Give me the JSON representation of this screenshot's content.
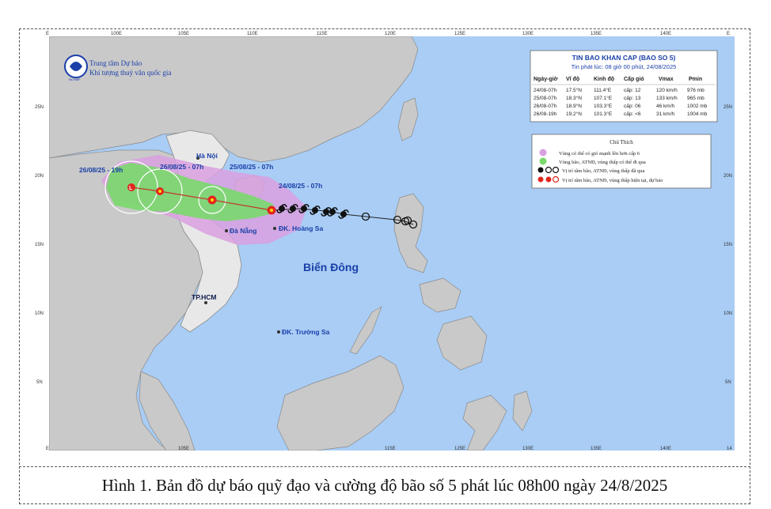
{
  "map": {
    "lon_ticks": [
      "E",
      "100E",
      "105E",
      "110E",
      "115E",
      "120E",
      "125E",
      "130E",
      "135E",
      "140E",
      "E"
    ],
    "lat_ticks_left": [
      "25N",
      "20N",
      "15N",
      "10N",
      "5N"
    ],
    "lat_ticks_right": [
      "25N",
      "20N",
      "15N",
      "10N",
      "5N"
    ],
    "bottom_ticks": [
      "E",
      "105E",
      "115E",
      "125E",
      "130E",
      "135E",
      "140E",
      "14"
    ]
  },
  "logo": {
    "line1": "Trung tâm Dự báo",
    "line2": "Khí tượng thuỷ văn quốc gia",
    "emblem_text": "NCHMF"
  },
  "bulletin": {
    "title": "TIN BAO KHAN CAP (BAO SO 5)",
    "issued": "Tin phát lúc: 08 giờ 00 phút, 24/08/2025",
    "headers": [
      "Ngày-giờ",
      "Vĩ độ",
      "Kinh độ",
      "Cấp gió",
      "Vmax",
      "Pmin"
    ],
    "rows": [
      [
        "24/08-07h",
        "17.5°N",
        "111.4°E",
        "cấp: 12",
        "120 km/h",
        "976 mb"
      ],
      [
        "25/08-07h",
        "18.3°N",
        "107.1°E",
        "cấp: 13",
        "133 km/h",
        "965 mb"
      ],
      [
        "26/08-07h",
        "18.9°N",
        "103.3°E",
        "cấp: 06",
        "46 km/h",
        "1002 mb"
      ],
      [
        "26/08-19h",
        "19.2°N",
        "101.3°E",
        "cấp: <6",
        "31 km/h",
        "1004 mb"
      ]
    ]
  },
  "legend": {
    "title": "Chú Thích",
    "items": [
      {
        "text": "Vùng có thể có gió mạnh lên hơn cấp 6",
        "color": "#d7a6e0"
      },
      {
        "text": "Vùng bão, ATNĐ, vùng thấp có thể đi qua",
        "color": "#6fd86f"
      },
      {
        "text": "Vị trí tâm bão, ATNĐ, vùng thấp đã qua",
        "color": "#111111"
      },
      {
        "text": "Vị trí tâm bão, ATNĐ, vùng thấp hiện tại, dự báo",
        "color": "#e0261f"
      }
    ]
  },
  "places": {
    "hanoi": "Hà Nội",
    "danang": "Đà Nẵng",
    "hoangsa": "ĐK. Hoàng Sa",
    "hcm": "TP.HCM",
    "truongsa": "ĐK. Trường Sa",
    "sea": "Biển Đông"
  },
  "track_labels": {
    "t1": "24/08/25 - 07h",
    "t2": "25/08/25 - 07h",
    "t3": "26/08/25 - 07h",
    "t4": "26/08/25 - 19h"
  },
  "colors": {
    "sea": "#a9cdf5",
    "land": "#c9c9c9",
    "vietnam": "#e6e6e6",
    "wind_zone": "#d9a0df",
    "storm_zone": "#79d96b",
    "track_line": "#c0392b",
    "label_blue": "#1a3fa8"
  },
  "caption": "Hình 1. Bản đồ dự báo quỹ đạo và cường độ bão số 5 phát lúc 08h00 ngày 24/8/2025"
}
